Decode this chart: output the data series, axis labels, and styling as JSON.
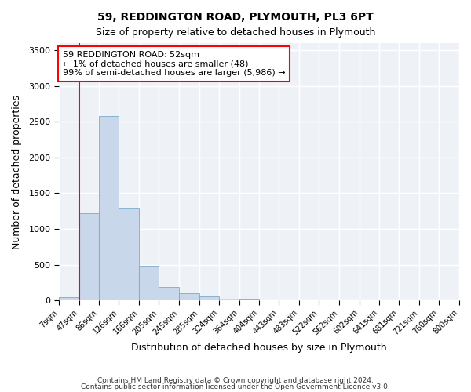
{
  "title1": "59, REDDINGTON ROAD, PLYMOUTH, PL3 6PT",
  "title2": "Size of property relative to detached houses in Plymouth",
  "xlabel": "Distribution of detached houses by size in Plymouth",
  "ylabel": "Number of detached properties",
  "bar_color": "#c8d8ea",
  "bar_edge_color": "#7aaac8",
  "red_line_x": 47,
  "annotation_line1": "59 REDDINGTON ROAD: 52sqm",
  "annotation_line2": "← 1% of detached houses are smaller (48)",
  "annotation_line3": "99% of semi-detached houses are larger (5,986) →",
  "footnote1": "Contains HM Land Registry data © Crown copyright and database right 2024.",
  "footnote2": "Contains public sector information licensed under the Open Government Licence v3.0.",
  "bins": [
    7,
    47,
    86,
    126,
    166,
    205,
    245,
    285,
    324,
    364,
    404,
    443,
    483,
    522,
    562,
    602,
    641,
    681,
    721,
    760,
    800
  ],
  "bin_labels": [
    "7sqm",
    "47sqm",
    "86sqm",
    "126sqm",
    "166sqm",
    "205sqm",
    "245sqm",
    "285sqm",
    "324sqm",
    "364sqm",
    "404sqm",
    "443sqm",
    "483sqm",
    "522sqm",
    "562sqm",
    "602sqm",
    "641sqm",
    "681sqm",
    "721sqm",
    "760sqm",
    "800sqm"
  ],
  "heights": [
    50,
    1220,
    2580,
    1300,
    480,
    185,
    105,
    55,
    30,
    10,
    5,
    5,
    2,
    0,
    0,
    0,
    0,
    0,
    0,
    0
  ],
  "ylim": [
    0,
    3600
  ],
  "yticks": [
    0,
    500,
    1000,
    1500,
    2000,
    2500,
    3000,
    3500
  ],
  "background_color": "#eef2f7",
  "grid_color": "#ffffff"
}
